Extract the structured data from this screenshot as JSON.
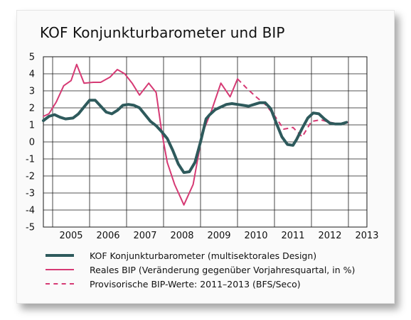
{
  "colors": {
    "kof": "#2e5a5c",
    "bip": "#d63a74",
    "grid": "#1a1a1a",
    "plot_bg": "#ffffff"
  },
  "chart_data": {
    "type": "line",
    "title": "KOF Konjunkturbarometer und BIP",
    "xlabel": "",
    "ylabel": "",
    "ylim": [
      -5,
      5
    ],
    "yticks": [
      "5",
      "4",
      "3",
      "2",
      "1",
      "0",
      "-1",
      "-2",
      "-3",
      "-4",
      "-5"
    ],
    "xlim": [
      2004.75,
      2013.5
    ],
    "xticks": [
      "2005",
      "2006",
      "2007",
      "2008",
      "2009",
      "2010",
      "2011",
      "2012",
      "2013"
    ],
    "grid": true,
    "legend_position": "bottom",
    "series": [
      {
        "name": "KOF Konjunkturbarometer (multisektorales Design)",
        "style": "thick-solid",
        "x": [
          2004.75,
          2004.9,
          2005.05,
          2005.2,
          2005.35,
          2005.55,
          2005.7,
          2005.85,
          2006.0,
          2006.15,
          2006.3,
          2006.45,
          2006.6,
          2006.75,
          2006.9,
          2007.05,
          2007.2,
          2007.35,
          2007.5,
          2007.65,
          2007.8,
          2007.95,
          2008.1,
          2008.25,
          2008.4,
          2008.55,
          2008.7,
          2008.85,
          2009.0,
          2009.15,
          2009.25,
          2009.4,
          2009.55,
          2009.7,
          2009.85,
          2010.0,
          2010.15,
          2010.3,
          2010.45,
          2010.6,
          2010.75,
          2010.9,
          2011.05,
          2011.2,
          2011.35,
          2011.5,
          2011.6,
          2011.75,
          2011.9,
          2012.05,
          2012.2,
          2012.35,
          2012.5,
          2012.65,
          2012.8,
          2012.95,
          2013.1,
          2013.2
        ],
        "values": [
          1.25,
          1.5,
          1.6,
          1.45,
          1.35,
          1.4,
          1.65,
          2.05,
          2.45,
          2.45,
          2.1,
          1.75,
          1.65,
          1.85,
          2.15,
          2.2,
          2.15,
          2.0,
          1.6,
          1.2,
          0.95,
          0.6,
          0.2,
          -0.5,
          -1.3,
          -1.8,
          -1.75,
          -1.2,
          0.0,
          1.35,
          1.6,
          1.9,
          2.05,
          2.2,
          2.25,
          2.2,
          2.15,
          2.1,
          2.2,
          2.3,
          2.3,
          1.95,
          1.1,
          0.3,
          -0.15,
          -0.2,
          0.15,
          0.8,
          1.4,
          1.7,
          1.65,
          1.35,
          1.1,
          1.05,
          1.05,
          1.15,
          null,
          null
        ]
      },
      {
        "name": "Reales BIP (Veränderung gegenüber Vorjahresquartal, in %)",
        "style": "solid",
        "x": [
          2004.75,
          2004.9,
          2005.1,
          2005.3,
          2005.5,
          2005.65,
          2005.85,
          2006.1,
          2006.3,
          2006.55,
          2006.75,
          2006.95,
          2007.15,
          2007.35,
          2007.6,
          2007.8,
          2007.95,
          2008.1,
          2008.3,
          2008.55,
          2008.8,
          2009.05,
          2009.3,
          2009.55,
          2009.8,
          2010.0,
          2010.25,
          2010.5,
          2010.75
        ],
        "values": [
          1.5,
          1.65,
          2.35,
          3.3,
          3.6,
          4.55,
          3.45,
          3.5,
          3.5,
          3.8,
          4.25,
          4.0,
          3.45,
          2.75,
          3.45,
          2.9,
          0.6,
          -1.2,
          -2.5,
          -3.7,
          -2.5,
          0.5,
          1.85,
          3.45,
          2.65,
          3.7,
          null,
          null,
          null
        ]
      },
      {
        "name": "Provisorische BIP-Werte: 2011–2013 (BFS/Seco)",
        "style": "dashed",
        "x": [
          2010.0,
          2010.25,
          2010.5,
          2010.75,
          2011.0,
          2011.25,
          2011.5,
          2011.75,
          2012.0,
          2012.25,
          2012.5,
          2012.75,
          2013.0
        ],
        "values": [
          3.7,
          3.15,
          2.65,
          2.2,
          1.55,
          0.75,
          0.85,
          0.3,
          1.2,
          1.3,
          1.15,
          1.05,
          1.15
        ]
      }
    ]
  },
  "legend": {
    "kof_label": "KOF Konjunkturbarometer (multisektorales Design)",
    "bip_label": "Reales BIP (Veränderung gegenüber Vorjahresquartal, in %)",
    "prov_label": "Provisorische BIP-Werte: 2011–2013 (BFS/Seco)"
  }
}
